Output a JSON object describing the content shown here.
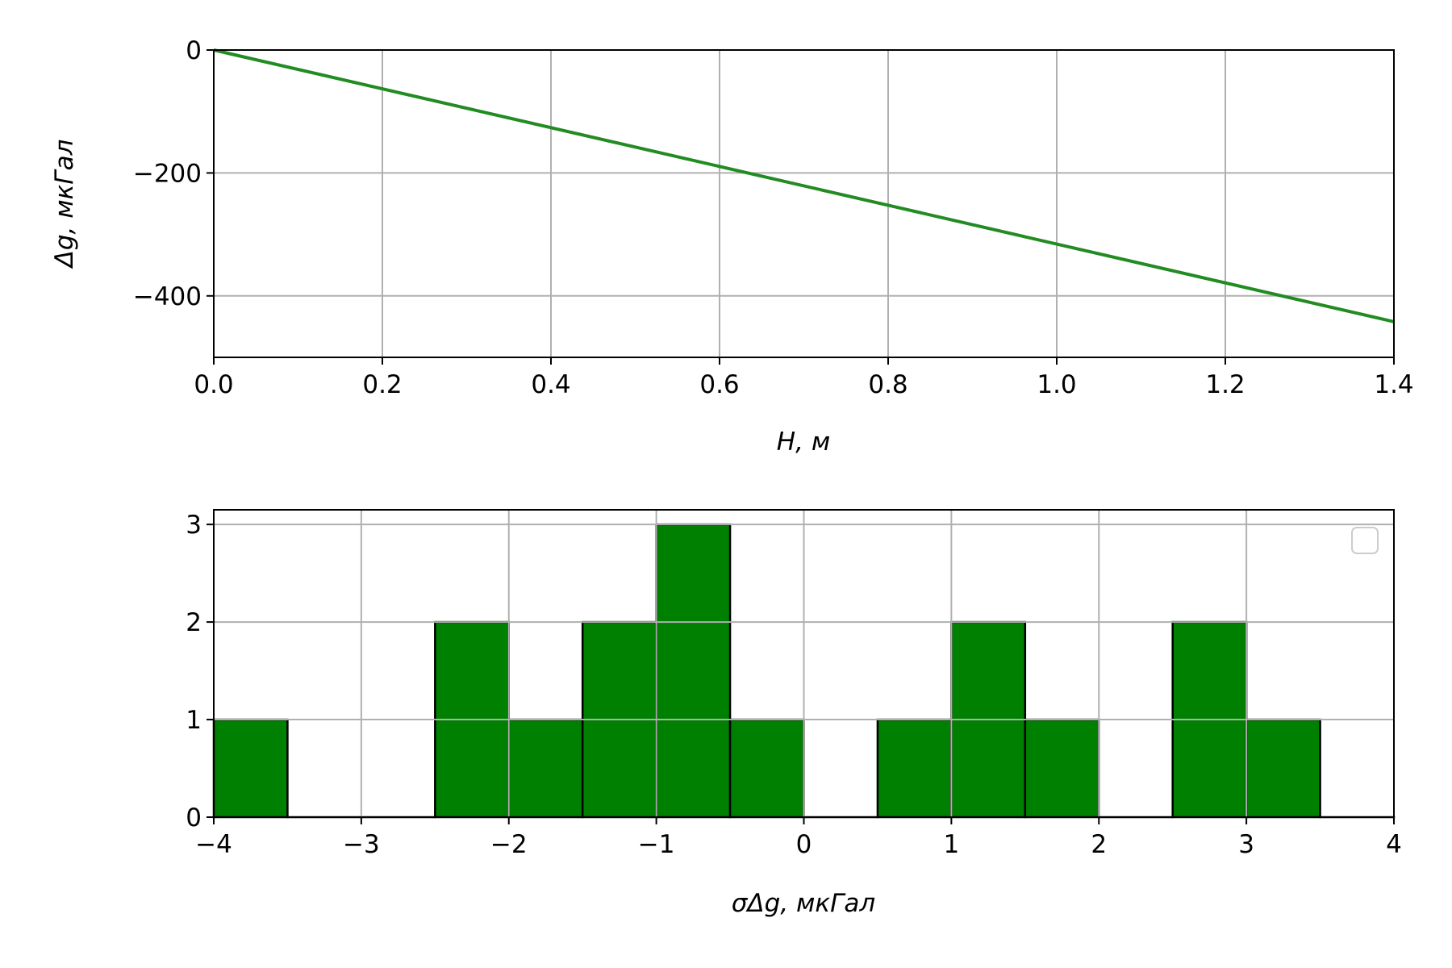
{
  "chart_data": [
    {
      "type": "line",
      "xlabel": "H, м",
      "ylabel": "Δg, мкГал",
      "xlim": [
        0,
        1.4
      ],
      "ylim": [
        -500,
        0
      ],
      "xticks": [
        "0.0",
        "0.2",
        "0.4",
        "0.6",
        "0.8",
        "1.0",
        "1.2",
        "1.4"
      ],
      "yticks": [
        "0",
        "−200",
        "−400"
      ],
      "grid": true,
      "series": [
        {
          "x": [
            0,
            1.4
          ],
          "y": [
            0,
            -442
          ],
          "color": "#228b22"
        }
      ]
    },
    {
      "type": "bar",
      "xlabel": "σΔg, мкГал",
      "ylabel": "",
      "xlim": [
        -4,
        4
      ],
      "ylim": [
        0,
        3.15
      ],
      "xticks": [
        "−4",
        "−3",
        "−2",
        "−1",
        "0",
        "1",
        "2",
        "3",
        "4"
      ],
      "yticks": [
        "0",
        "1",
        "2",
        "3"
      ],
      "grid": true,
      "legend": "top-right",
      "bin_edges": [
        -4,
        -3.5,
        -3,
        -2.5,
        -2,
        -1.5,
        -1,
        -0.5,
        0,
        0.5,
        1,
        1.5,
        2,
        2.5,
        3,
        3.5,
        4
      ],
      "counts": [
        1,
        0,
        0,
        2,
        1,
        2,
        3,
        1,
        0,
        1,
        2,
        1,
        0,
        2,
        1,
        0
      ],
      "color": "#008000"
    }
  ]
}
